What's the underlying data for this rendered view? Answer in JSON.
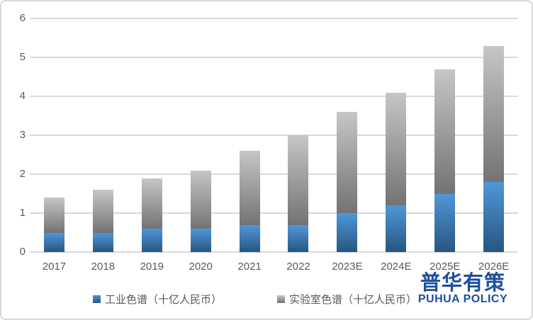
{
  "chart_data": {
    "type": "bar",
    "stacked": true,
    "title": "",
    "xlabel": "",
    "ylabel": "",
    "categories": [
      "2017",
      "2018",
      "2019",
      "2020",
      "2021",
      "2022",
      "2023E",
      "2024E",
      "2025E",
      "2026E"
    ],
    "series": [
      {
        "name": "工业色谱（十亿人民币）",
        "key": "industrial-chromatography",
        "values": [
          0.5,
          0.5,
          0.6,
          0.6,
          0.7,
          0.7,
          1.0,
          1.2,
          1.5,
          1.8
        ],
        "color_top": "#4f97d9",
        "color_bottom": "#27567e"
      },
      {
        "name": "实验室色谱（十亿人民币）",
        "key": "laboratory-chromatography",
        "values": [
          0.9,
          1.1,
          1.3,
          1.5,
          1.9,
          2.3,
          2.6,
          2.9,
          3.2,
          3.5
        ],
        "color_top": "#c6c6c6",
        "color_bottom": "#737373"
      }
    ],
    "totals": [
      1.4,
      1.6,
      1.9,
      2.1,
      2.6,
      3.0,
      3.6,
      4.1,
      4.7,
      5.3
    ],
    "ylim": [
      0,
      6
    ],
    "yticks": [
      0,
      1,
      2,
      3,
      4,
      5,
      6
    ],
    "grid": true,
    "legend_position": "bottom"
  },
  "legend": {
    "items": [
      {
        "label": "工业色谱（十亿人民币）"
      },
      {
        "label": "实验室色谱（十亿人民币）"
      }
    ]
  },
  "logo": {
    "title": "普华有策",
    "subtitle": "PUHUA POLICY",
    "color": "#1d4f9e"
  },
  "colors": {
    "gridline": "#d9d9d9",
    "axis_text": "#595959",
    "frame_border": "#d9d9d9",
    "background": "#ffffff"
  }
}
